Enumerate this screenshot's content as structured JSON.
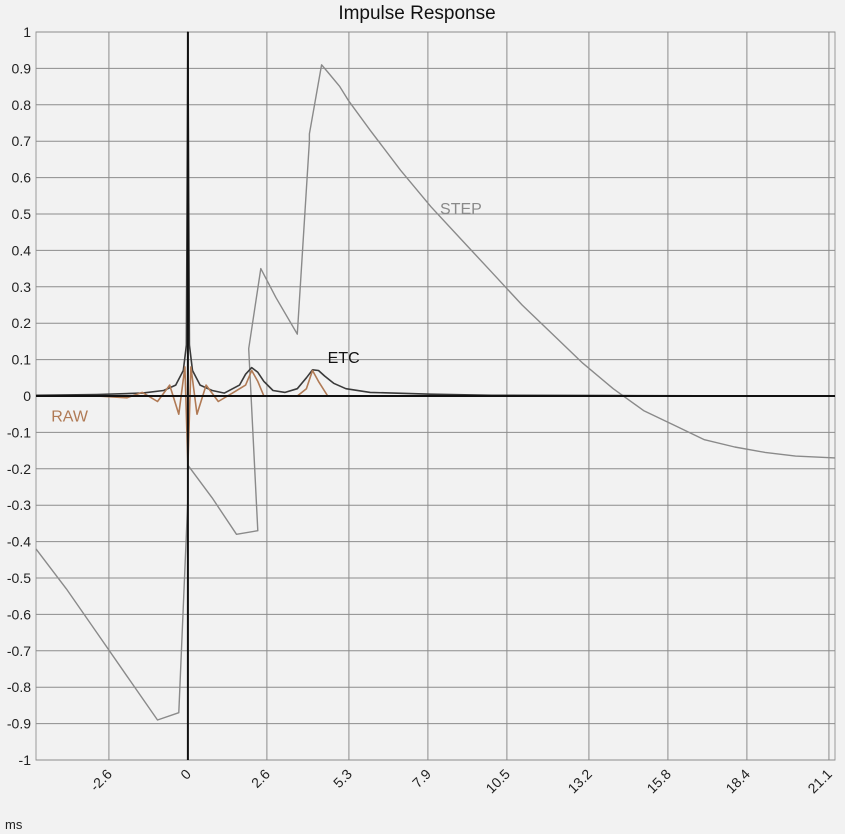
{
  "chart_data": {
    "type": "line",
    "title": "Impulse Response",
    "xlabel": "ms",
    "ylabel": "",
    "xlim": [
      -5.0,
      21.3
    ],
    "ylim": [
      -1,
      1
    ],
    "x_ticks": [
      -2.6,
      0,
      2.6,
      5.3,
      7.9,
      10.5,
      13.2,
      15.8,
      18.4,
      21.1
    ],
    "y_ticks": [
      1,
      0.9,
      0.8,
      0.7,
      0.6,
      0.5,
      0.4,
      0.3,
      0.2,
      0.1,
      0,
      -0.1,
      -0.2,
      -0.3,
      -0.4,
      -0.5,
      -0.6,
      -0.7,
      -0.8,
      -0.9,
      -1
    ],
    "grid": true,
    "series": [
      {
        "name": "STEP",
        "color": "#8a8a8a",
        "x": [
          -5.0,
          -4.0,
          -3.0,
          -2.0,
          -1.0,
          -0.3,
          0.0,
          0.0,
          0.8,
          1.6,
          2.3,
          2.0,
          2.4,
          2.9,
          3.6,
          4.0,
          4.0,
          4.4,
          4.6,
          5.0,
          5.3,
          6.0,
          7.0,
          8.0,
          9.0,
          10.0,
          11.0,
          12.0,
          13.0,
          14.0,
          15.0,
          16.0,
          17.0,
          18.0,
          19.0,
          20.0,
          21.3
        ],
        "values": [
          -0.42,
          -0.53,
          -0.65,
          -0.77,
          -0.89,
          -0.87,
          -0.28,
          -0.19,
          -0.28,
          -0.38,
          -0.37,
          0.13,
          0.35,
          0.27,
          0.17,
          0.7,
          0.72,
          0.91,
          0.89,
          0.85,
          0.81,
          0.73,
          0.62,
          0.52,
          0.43,
          0.34,
          0.25,
          0.17,
          0.09,
          0.02,
          -0.04,
          -0.08,
          -0.12,
          -0.14,
          -0.155,
          -0.165,
          -0.17
        ]
      },
      {
        "name": "ETC",
        "color": "#3a3a3a",
        "x": [
          -5.0,
          -3.0,
          -1.5,
          -0.8,
          -0.4,
          -0.15,
          -0.05,
          0.0,
          0.05,
          0.15,
          0.4,
          0.8,
          1.2,
          1.7,
          1.9,
          2.1,
          2.3,
          2.5,
          2.8,
          3.2,
          3.6,
          3.9,
          4.1,
          4.3,
          4.5,
          4.8,
          5.2,
          6.0,
          8.0,
          10.0,
          14.0,
          21.3
        ],
        "values": [
          0.002,
          0.004,
          0.008,
          0.015,
          0.03,
          0.07,
          0.14,
          1.0,
          0.14,
          0.07,
          0.03,
          0.015,
          0.008,
          0.03,
          0.06,
          0.078,
          0.065,
          0.04,
          0.015,
          0.01,
          0.02,
          0.05,
          0.072,
          0.07,
          0.055,
          0.035,
          0.02,
          0.01,
          0.005,
          0.002,
          0.001,
          0.0
        ]
      },
      {
        "name": "RAW",
        "color": "#b07a55",
        "x": [
          -5.0,
          -3.0,
          -2.0,
          -1.5,
          -1.0,
          -0.6,
          -0.3,
          -0.1,
          0.0,
          0.1,
          0.3,
          0.6,
          1.0,
          1.5,
          1.9,
          2.1,
          2.3,
          2.5,
          2.8,
          3.2,
          3.6,
          3.9,
          4.1,
          4.3,
          4.6,
          5.0,
          6.0,
          10.0,
          21.3
        ],
        "values": [
          0.0,
          0.0,
          -0.005,
          0.01,
          -0.015,
          0.03,
          -0.05,
          0.08,
          -0.19,
          0.08,
          -0.05,
          0.03,
          -0.015,
          0.01,
          0.03,
          0.07,
          0.04,
          0.0,
          0.0,
          0.0,
          0.0,
          0.02,
          0.07,
          0.04,
          0.0,
          0.0,
          0.0,
          0.0,
          0.0
        ]
      }
    ],
    "annotations": [
      {
        "text": "STEP",
        "x": 8.3,
        "y": 0.5,
        "color": "#8a8a8a"
      },
      {
        "text": "ETC",
        "x": 4.6,
        "y": 0.09,
        "color": "#111111"
      },
      {
        "text": "RAW",
        "x": -4.5,
        "y": -0.07,
        "color": "#b07a55"
      }
    ]
  }
}
